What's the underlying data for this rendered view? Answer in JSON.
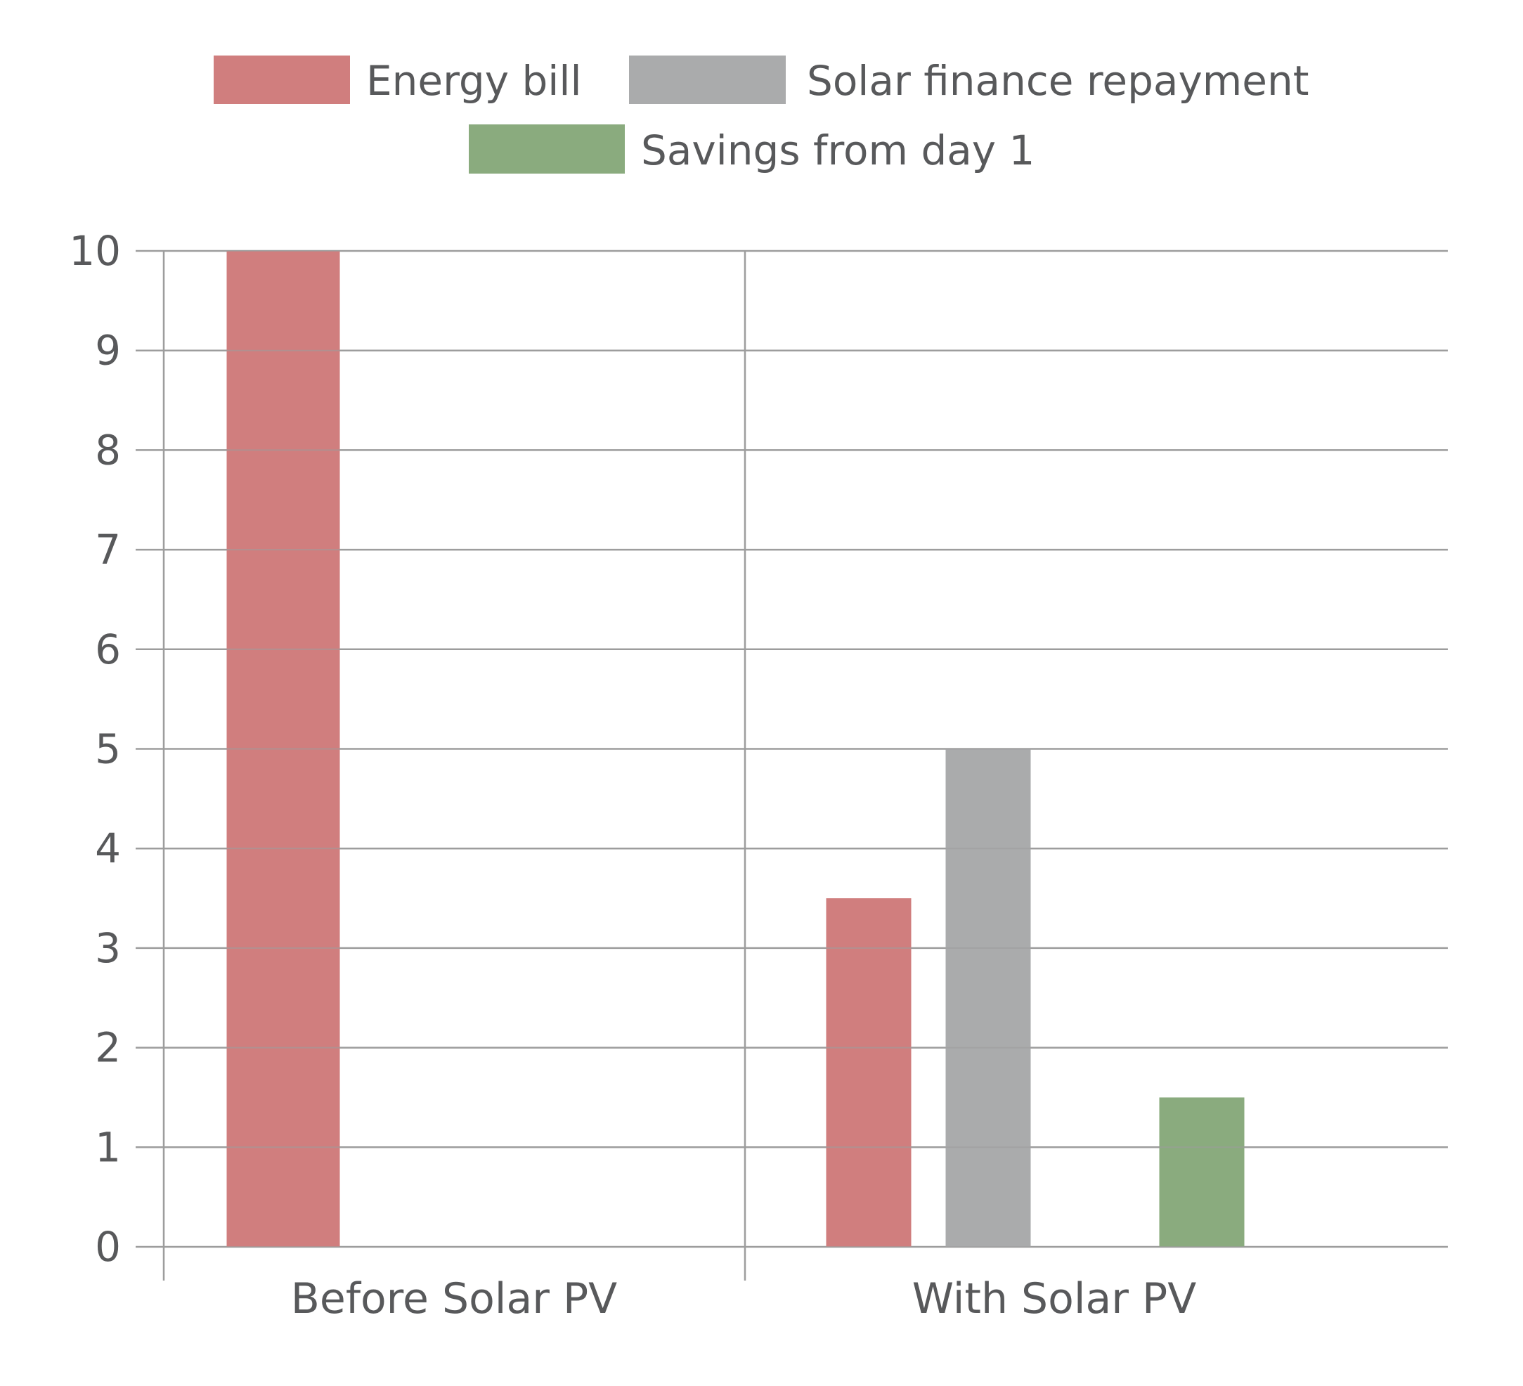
{
  "chart_data": {
    "type": "bar",
    "title": "",
    "xlabel": "",
    "ylabel": "",
    "categories": [
      "Before Solar PV",
      "With Solar PV"
    ],
    "series": [
      {
        "name": "Energy bill",
        "color": "#d07e7e",
        "values": [
          10,
          3.5
        ]
      },
      {
        "name": "Solar finance repayment",
        "color": "#aaabac",
        "values": [
          null,
          5
        ]
      },
      {
        "name": "Savings from day 1",
        "color": "#8aab7e",
        "values": [
          null,
          1.5
        ]
      }
    ],
    "ylim": [
      0,
      10
    ],
    "yticks": [
      "0",
      "1",
      "2",
      "3",
      "4",
      "5",
      "6",
      "7",
      "8",
      "9",
      "10"
    ],
    "grid": true,
    "legend_position": "top-center",
    "colors": {
      "text": "#58595b",
      "grid": "#9d9d9d"
    }
  }
}
